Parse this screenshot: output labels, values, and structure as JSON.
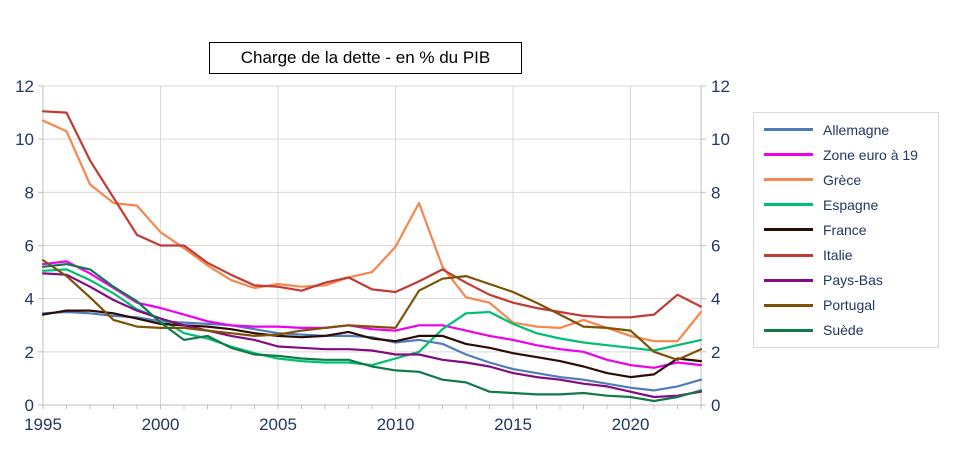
{
  "title": "Charge de la dette - en % du PIB",
  "colors": {
    "grid": "#d9d9d9",
    "axis": "#bfbfbf",
    "tick_label": "#1f3864",
    "legend_text": "#1f3864",
    "title_text": "#000000",
    "background": "#ffffff"
  },
  "chart_data": {
    "type": "line",
    "title": "Charge de la dette - en % du PIB",
    "xlabel": "",
    "ylabel": "",
    "ylim": [
      0,
      12
    ],
    "y_ticks": [
      0,
      2,
      4,
      6,
      8,
      10,
      12
    ],
    "x_range": [
      1995,
      2023
    ],
    "x_tick_years": [
      1995,
      2000,
      2005,
      2010,
      2015,
      2020
    ],
    "grid": true,
    "dual_y_axis": true,
    "legend_position": "right",
    "x": [
      1995,
      1996,
      1997,
      1998,
      1999,
      2000,
      2001,
      2002,
      2003,
      2004,
      2005,
      2006,
      2007,
      2008,
      2009,
      2010,
      2011,
      2012,
      2013,
      2014,
      2015,
      2016,
      2017,
      2018,
      2019,
      2020,
      2021,
      2022,
      2023
    ],
    "series": [
      {
        "name": "Allemagne",
        "color": "#4f7cba",
        "values": [
          3.45,
          3.5,
          3.45,
          3.35,
          3.3,
          3.15,
          3.1,
          3.05,
          3.0,
          2.85,
          2.7,
          2.65,
          2.6,
          2.6,
          2.55,
          2.35,
          2.45,
          2.3,
          1.9,
          1.6,
          1.35,
          1.2,
          1.05,
          0.95,
          0.8,
          0.65,
          0.55,
          0.7,
          0.95
        ]
      },
      {
        "name": "Zone euro à 19",
        "color": "#ee00ee",
        "values": [
          5.3,
          5.4,
          4.95,
          4.4,
          3.85,
          3.65,
          3.4,
          3.15,
          3.0,
          2.95,
          2.95,
          2.9,
          2.9,
          3.0,
          2.85,
          2.8,
          3.0,
          3.0,
          2.8,
          2.6,
          2.45,
          2.25,
          2.1,
          2.0,
          1.7,
          1.5,
          1.4,
          1.6,
          1.5
        ]
      },
      {
        "name": "Grèce",
        "color": "#f5874e",
        "values": [
          10.7,
          10.3,
          8.3,
          7.6,
          7.5,
          6.5,
          5.9,
          5.25,
          4.7,
          4.4,
          4.55,
          4.45,
          4.5,
          4.8,
          5.0,
          5.95,
          7.6,
          5.2,
          4.05,
          3.85,
          3.1,
          2.95,
          2.9,
          3.2,
          2.9,
          2.6,
          2.4,
          2.4,
          3.5
        ]
      },
      {
        "name": "Espagne",
        "color": "#00bf71",
        "values": [
          5.05,
          5.1,
          4.7,
          4.2,
          3.6,
          3.25,
          2.7,
          2.5,
          2.2,
          1.95,
          1.75,
          1.65,
          1.6,
          1.6,
          1.5,
          1.75,
          2.0,
          2.85,
          3.45,
          3.5,
          3.05,
          2.7,
          2.5,
          2.35,
          2.25,
          2.15,
          2.05,
          2.25,
          2.45
        ]
      },
      {
        "name": "France",
        "color": "#2e0b05",
        "values": [
          3.4,
          3.55,
          3.55,
          3.45,
          3.25,
          3.05,
          3.0,
          2.95,
          2.85,
          2.7,
          2.6,
          2.55,
          2.6,
          2.75,
          2.5,
          2.4,
          2.6,
          2.6,
          2.3,
          2.15,
          1.95,
          1.8,
          1.65,
          1.45,
          1.2,
          1.05,
          1.15,
          1.75,
          1.65
        ]
      },
      {
        "name": "Italie",
        "color": "#c23a34",
        "values": [
          11.05,
          11.0,
          9.2,
          7.8,
          6.4,
          6.0,
          6.0,
          5.35,
          4.9,
          4.5,
          4.45,
          4.3,
          4.6,
          4.8,
          4.35,
          4.25,
          4.65,
          5.1,
          4.6,
          4.15,
          3.85,
          3.65,
          3.5,
          3.35,
          3.3,
          3.3,
          3.4,
          4.15,
          3.7
        ]
      },
      {
        "name": "Pays-Bas",
        "color": "#830c80",
        "values": [
          4.95,
          4.9,
          4.45,
          3.95,
          3.55,
          3.25,
          3.0,
          2.8,
          2.6,
          2.45,
          2.2,
          2.15,
          2.1,
          2.1,
          2.05,
          1.9,
          1.9,
          1.7,
          1.6,
          1.45,
          1.2,
          1.05,
          0.95,
          0.8,
          0.7,
          0.5,
          0.3,
          0.35,
          0.5
        ]
      },
      {
        "name": "Portugal",
        "color": "#7e5206",
        "values": [
          5.45,
          4.85,
          4.05,
          3.2,
          2.95,
          2.9,
          2.9,
          2.8,
          2.7,
          2.6,
          2.65,
          2.8,
          2.9,
          3.0,
          2.95,
          2.9,
          4.3,
          4.75,
          4.85,
          4.55,
          4.25,
          3.85,
          3.4,
          2.95,
          2.9,
          2.8,
          2.0,
          1.7,
          2.1
        ]
      },
      {
        "name": "Suède",
        "color": "#12794b",
        "values": [
          5.2,
          5.3,
          5.1,
          4.45,
          3.9,
          3.1,
          2.45,
          2.6,
          2.15,
          1.9,
          1.85,
          1.75,
          1.7,
          1.7,
          1.45,
          1.3,
          1.25,
          0.95,
          0.85,
          0.5,
          0.45,
          0.4,
          0.4,
          0.45,
          0.35,
          0.3,
          0.15,
          0.3,
          0.55
        ]
      }
    ]
  }
}
